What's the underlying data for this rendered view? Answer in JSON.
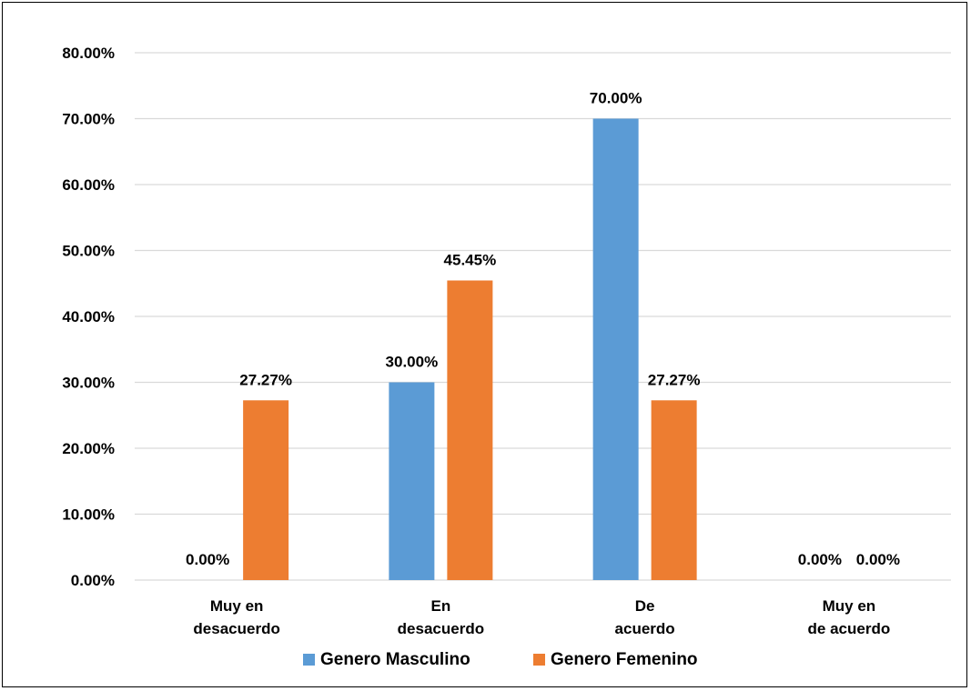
{
  "chart_data": {
    "type": "bar",
    "title": "",
    "xlabel": "",
    "ylabel": "",
    "categories": [
      [
        "Muy en",
        "desacuerdo"
      ],
      [
        "En",
        "desacuerdo"
      ],
      [
        "De",
        "acuerdo"
      ],
      [
        "Muy en",
        "de acuerdo"
      ]
    ],
    "series": [
      {
        "name": "Genero Masculino",
        "color": "#5B9BD5",
        "values": [
          0.0,
          30.0,
          70.0,
          0.0
        ],
        "labels": [
          "0.00%",
          "30.00%",
          "70.00%",
          "0.00%"
        ]
      },
      {
        "name": "Genero Femenino",
        "color": "#ED7D31",
        "values": [
          27.27,
          45.45,
          27.27,
          0.0
        ],
        "labels": [
          "27.27%",
          "45.45%",
          "27.27%",
          "0.00%"
        ]
      }
    ],
    "ylim": [
      0,
      80
    ],
    "yticks": [
      0,
      10,
      20,
      30,
      40,
      50,
      60,
      70,
      80
    ],
    "ytick_labels": [
      "0.00%",
      "10.00%",
      "20.00%",
      "30.00%",
      "40.00%",
      "50.00%",
      "60.00%",
      "70.00%",
      "80.00%"
    ],
    "grid": true,
    "legend_position": "bottom"
  }
}
